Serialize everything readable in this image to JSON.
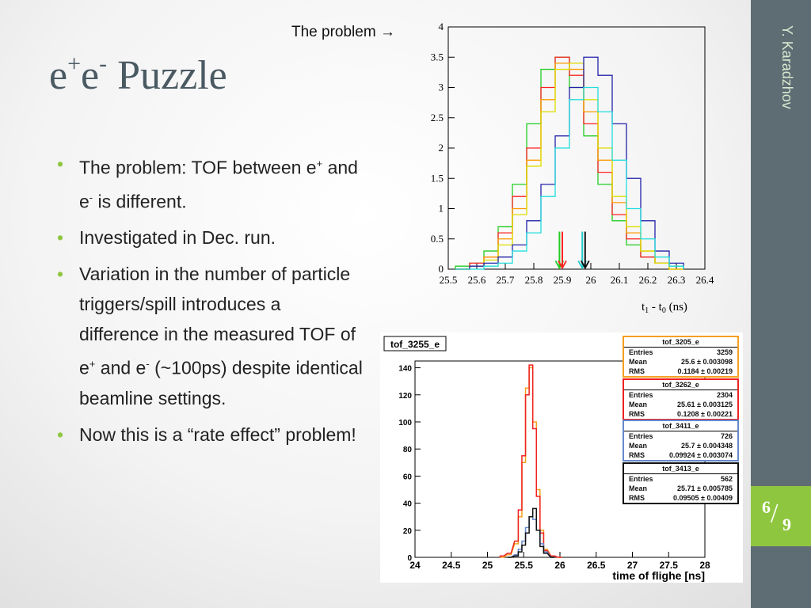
{
  "slide": {
    "title_main": "e",
    "title_sup1": "+",
    "title_mid": "e",
    "title_sup2": "-",
    "title_rest": " Puzzle",
    "author": "Y. Karadzhov",
    "page": {
      "current": "6",
      "total": "9"
    },
    "problem_label": "The problem",
    "problem_arrow_icon": "right-arrow-icon",
    "accent_color": "#8fc640",
    "sidebar_color": "#5e6d73"
  },
  "bullets": [
    {
      "pre": "The problem: TOF between e",
      "sup1": "+",
      "mid": " and e",
      "sup2": "-",
      "post": " is different."
    },
    {
      "pre": "Investigated in Dec. run.",
      "sup1": "",
      "mid": "",
      "sup2": "",
      "post": ""
    },
    {
      "pre": "Variation in the number of particle triggers/spill introduces a difference in the measured TOF of e",
      "sup1": "+",
      "mid": " and e",
      "sup2": "-",
      "post": " (~100ps) despite identical beamline settings."
    },
    {
      "pre": "Now this is a “rate effect” problem!",
      "sup1": "",
      "mid": "",
      "sup2": "",
      "post": ""
    }
  ],
  "chart_data": [
    {
      "type": "line",
      "xlabel_main": "t",
      "xlabel_sub1": "1",
      "xlabel_mid": " - t",
      "xlabel_sub2": "0",
      "xlabel_unit": " (ns)",
      "xlim": [
        25.5,
        26.4
      ],
      "ylim": [
        0,
        4
      ],
      "x_ticks": [
        "25.5",
        "25.6",
        "25.7",
        "25.8",
        "25.9",
        "26",
        "26.1",
        "26.2",
        "26.3",
        "26.4"
      ],
      "y_ticks": [
        "0",
        "0.5",
        "1",
        "1.5",
        "2",
        "2.5",
        "3",
        "3.5",
        "4"
      ],
      "series": [
        {
          "color": "#22cc22",
          "x": [
            25.55,
            25.6,
            25.65,
            25.7,
            25.75,
            25.8,
            25.85,
            25.9,
            25.95,
            26.0,
            26.05,
            26.1,
            26.15,
            26.2,
            26.25,
            26.3
          ],
          "values": [
            0.05,
            0.1,
            0.3,
            0.7,
            1.4,
            2.4,
            3.3,
            3.5,
            3.0,
            2.2,
            1.4,
            0.8,
            0.4,
            0.2,
            0.1,
            0.05
          ]
        },
        {
          "color": "#ff2222",
          "x": [
            25.55,
            25.6,
            25.65,
            25.7,
            25.75,
            25.8,
            25.85,
            25.9,
            25.95,
            26.0,
            26.05,
            26.1,
            26.15,
            26.2,
            26.25,
            26.3
          ],
          "values": [
            0.0,
            0.1,
            0.2,
            0.6,
            1.2,
            2.0,
            3.0,
            3.5,
            3.2,
            2.4,
            1.6,
            0.9,
            0.5,
            0.2,
            0.1,
            0.0
          ]
        },
        {
          "color": "#ff9900",
          "x": [
            25.55,
            25.6,
            25.65,
            25.7,
            25.75,
            25.8,
            25.85,
            25.9,
            25.95,
            26.0,
            26.05,
            26.1,
            26.15,
            26.2,
            26.25,
            26.3
          ],
          "values": [
            0.0,
            0.05,
            0.2,
            0.5,
            1.0,
            1.8,
            2.8,
            3.4,
            3.3,
            2.6,
            1.8,
            1.1,
            0.6,
            0.3,
            0.1,
            0.0
          ]
        },
        {
          "color": "#dddd00",
          "x": [
            25.55,
            25.6,
            25.65,
            25.7,
            25.75,
            25.8,
            25.85,
            25.9,
            25.95,
            26.0,
            26.05,
            26.1,
            26.15,
            26.2,
            26.25,
            26.3
          ],
          "values": [
            0.0,
            0.05,
            0.15,
            0.4,
            0.9,
            1.7,
            2.6,
            3.3,
            3.4,
            2.8,
            2.0,
            1.2,
            0.7,
            0.3,
            0.1,
            0.0
          ]
        },
        {
          "color": "#2222aa",
          "x": [
            25.55,
            25.6,
            25.65,
            25.7,
            25.75,
            25.8,
            25.85,
            25.9,
            25.95,
            26.0,
            26.05,
            26.1,
            26.15,
            26.2,
            26.25,
            26.3
          ],
          "values": [
            0.0,
            0.05,
            0.1,
            0.2,
            0.4,
            0.8,
            1.4,
            2.2,
            3.0,
            3.5,
            3.2,
            2.4,
            1.5,
            0.8,
            0.3,
            0.1
          ]
        },
        {
          "color": "#22dddd",
          "x": [
            25.55,
            25.6,
            25.65,
            25.7,
            25.75,
            25.8,
            25.85,
            25.9,
            25.95,
            26.0,
            26.05,
            26.1,
            26.15,
            26.2,
            26.25,
            26.3
          ],
          "values": [
            0.0,
            0.0,
            0.05,
            0.1,
            0.3,
            0.6,
            1.2,
            2.0,
            2.8,
            3.0,
            2.6,
            1.8,
            1.0,
            0.5,
            0.2,
            0.05
          ]
        }
      ],
      "arrows": [
        {
          "x": 25.89,
          "color": "#22cc22"
        },
        {
          "x": 25.9,
          "color": "#ff2222"
        },
        {
          "x": 25.97,
          "color": "#22cccc"
        },
        {
          "x": 25.98,
          "color": "#111111"
        }
      ]
    },
    {
      "type": "line",
      "name": "tof_3255_e",
      "xlabel": "time of flighe [ns]",
      "xlim": [
        24,
        28
      ],
      "ylim": [
        0,
        145
      ],
      "x_ticks": [
        "24",
        "24.5",
        "25",
        "25.5",
        "26",
        "26.5",
        "27",
        "27.5",
        "28"
      ],
      "y_ticks": [
        "0",
        "20",
        "40",
        "60",
        "80",
        "100",
        "120",
        "140"
      ],
      "series": [
        {
          "name": "tof_3205_e",
          "color": "#f4a020",
          "x": [
            25.2,
            25.3,
            25.4,
            25.45,
            25.5,
            25.55,
            25.6,
            25.65,
            25.7,
            25.75,
            25.8,
            25.9,
            26.0
          ],
          "values": [
            0,
            2,
            10,
            30,
            70,
            125,
            140,
            100,
            50,
            20,
            6,
            1,
            0
          ]
        },
        {
          "name": "tof_3262_e",
          "color": "#ee2222",
          "x": [
            25.2,
            25.3,
            25.4,
            25.45,
            25.5,
            25.55,
            25.6,
            25.65,
            25.7,
            25.75,
            25.8,
            25.9,
            26.0
          ],
          "values": [
            1,
            3,
            12,
            35,
            75,
            120,
            142,
            95,
            45,
            18,
            5,
            1,
            0
          ]
        },
        {
          "name": "tof_3411_e",
          "color": "#6688cc",
          "x": [
            25.3,
            25.4,
            25.45,
            25.5,
            25.55,
            25.6,
            25.65,
            25.7,
            25.75,
            25.8,
            25.9
          ],
          "values": [
            0,
            2,
            6,
            12,
            22,
            30,
            28,
            20,
            10,
            4,
            0
          ]
        },
        {
          "name": "tof_3413_e",
          "color": "#111111",
          "x": [
            25.3,
            25.4,
            25.45,
            25.5,
            25.55,
            25.6,
            25.65,
            25.7,
            25.75,
            25.8,
            25.9
          ],
          "values": [
            0,
            1,
            4,
            9,
            18,
            30,
            36,
            20,
            8,
            3,
            0
          ]
        }
      ],
      "stats": [
        {
          "name": "tof_3205_e",
          "color": "#f4a020",
          "entries": "3259",
          "mean": "25.6 ± 0.003098",
          "rms": "0.1184 ± 0.00219"
        },
        {
          "name": "tof_3262_e",
          "color": "#ee2222",
          "entries": "2304",
          "mean": "25.61 ± 0.003125",
          "rms": "0.1208 ± 0.00221"
        },
        {
          "name": "tof_3411_e",
          "color": "#6688cc",
          "entries": "726",
          "mean": "25.7 ± 0.004348",
          "rms": "0.09924 ± 0.003074"
        },
        {
          "name": "tof_3413_e",
          "color": "#111111",
          "entries": "562",
          "mean": "25.71 ± 0.005785",
          "rms": "0.09505 ± 0.00409"
        }
      ],
      "stat_labels": {
        "entries": "Entries",
        "mean": "Mean",
        "rms": "RMS"
      }
    }
  ]
}
